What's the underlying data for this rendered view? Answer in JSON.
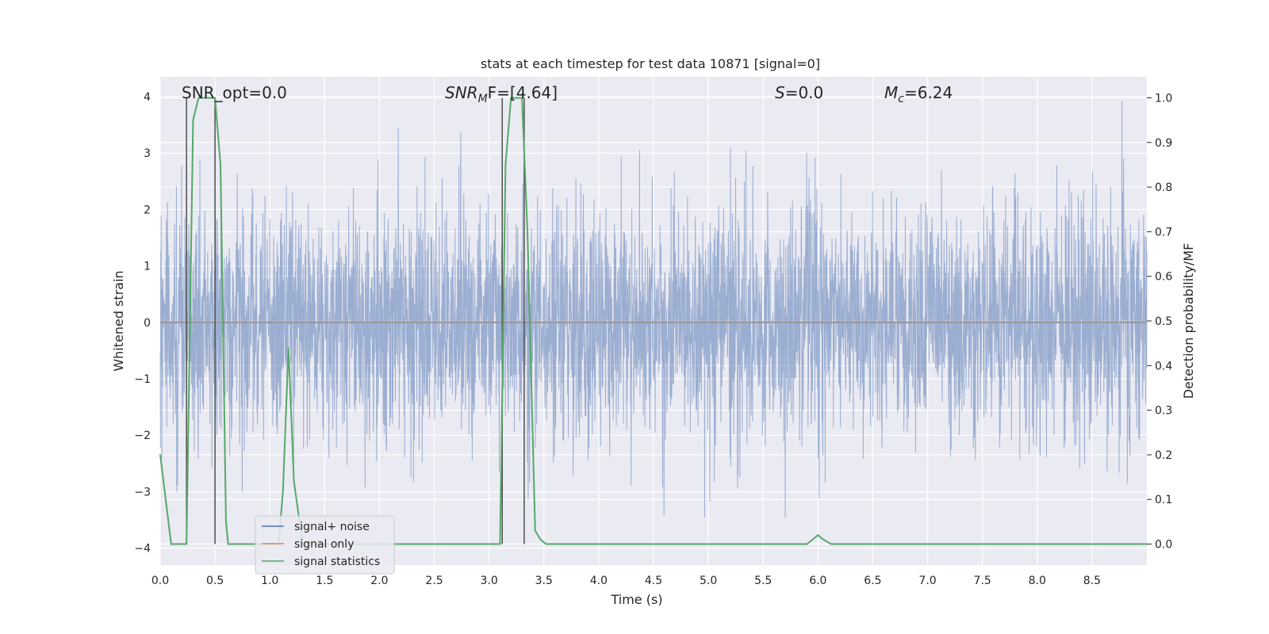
{
  "chart_data": {
    "type": "line",
    "title": "stats at each timestep for test data 10871 [signal=0]",
    "xlabel": "Time (s)",
    "ylabel_left": "Whitened strain",
    "ylabel_right": "Detection probability/MF",
    "xlim": [
      0.0,
      9.0
    ],
    "ylim_left": [
      -4.3,
      4.35
    ],
    "ylim_right": [
      -0.047,
      1.047
    ],
    "x_ticks": [
      "0.0",
      "0.5",
      "1.0",
      "1.5",
      "2.0",
      "2.5",
      "3.0",
      "3.5",
      "4.0",
      "4.5",
      "5.0",
      "5.5",
      "6.0",
      "6.5",
      "7.0",
      "7.5",
      "8.0",
      "8.5"
    ],
    "y_ticks_left": [
      "4",
      "3",
      "2",
      "1",
      "0",
      "−1",
      "−2",
      "−3",
      "−4"
    ],
    "y_ticks_right": [
      "1.0",
      "0.9",
      "0.8",
      "0.7",
      "0.6",
      "0.5",
      "0.4",
      "0.3",
      "0.2",
      "0.1",
      "0.0"
    ],
    "annotations": {
      "snr_opt": "SNR_opt=0.0",
      "snr_mf_name": "SNR",
      "snr_mf_sub": "M",
      "snr_mf_rest": "F=[4.64]",
      "s_name": "S",
      "s_rest": "=0.0",
      "mc_name": "M",
      "mc_sub": "c",
      "mc_rest": "=6.24"
    },
    "series": [
      {
        "name": "signal+ noise",
        "color": "#4c72b0",
        "description": "whitened noisy strain, approx. 4096 Hz, amplitude within about ±3 with spikes",
        "sample_rate_hz": 4096,
        "seed": 10871
      },
      {
        "name": "signal only",
        "color": "#dd8452",
        "values_constant": 0.0
      },
      {
        "name": "signal statistics",
        "color": "#55a868",
        "x": [
          0.0,
          0.05,
          0.1,
          0.24,
          0.3,
          0.35,
          0.4,
          0.5,
          0.55,
          0.6,
          0.62,
          0.68,
          0.75,
          1.0,
          1.08,
          1.12,
          1.17,
          1.22,
          1.3,
          2.0,
          3.05,
          3.1,
          3.15,
          3.2,
          3.3,
          3.35,
          3.42,
          3.47,
          3.52,
          3.6,
          5.9,
          5.95,
          6.0,
          6.05,
          6.12,
          9.0
        ],
        "values": [
          0.2,
          0.1,
          0.0,
          0.0,
          0.95,
          1.0,
          1.0,
          1.0,
          0.85,
          0.05,
          0.0,
          0.0,
          0.0,
          0.0,
          0.0,
          0.12,
          0.44,
          0.14,
          0.0,
          0.0,
          0.0,
          0.0,
          0.85,
          1.0,
          1.0,
          0.7,
          0.03,
          0.01,
          0.0,
          0.0,
          0.0,
          0.01,
          0.02,
          0.01,
          0.0,
          0.0
        ]
      }
    ],
    "vertical_lines": [
      0.24,
      0.5,
      3.12,
      3.32
    ],
    "vertical_lines_color": "#505050",
    "legend": {
      "placement": "lower-left",
      "entries": [
        {
          "label": "signal+ noise",
          "color": "#4c72b0"
        },
        {
          "label": "signal only",
          "color": "#dd8452"
        },
        {
          "label": "signal statistics",
          "color": "#55a868"
        }
      ]
    },
    "background": "#eaeaf2",
    "grid": true
  }
}
